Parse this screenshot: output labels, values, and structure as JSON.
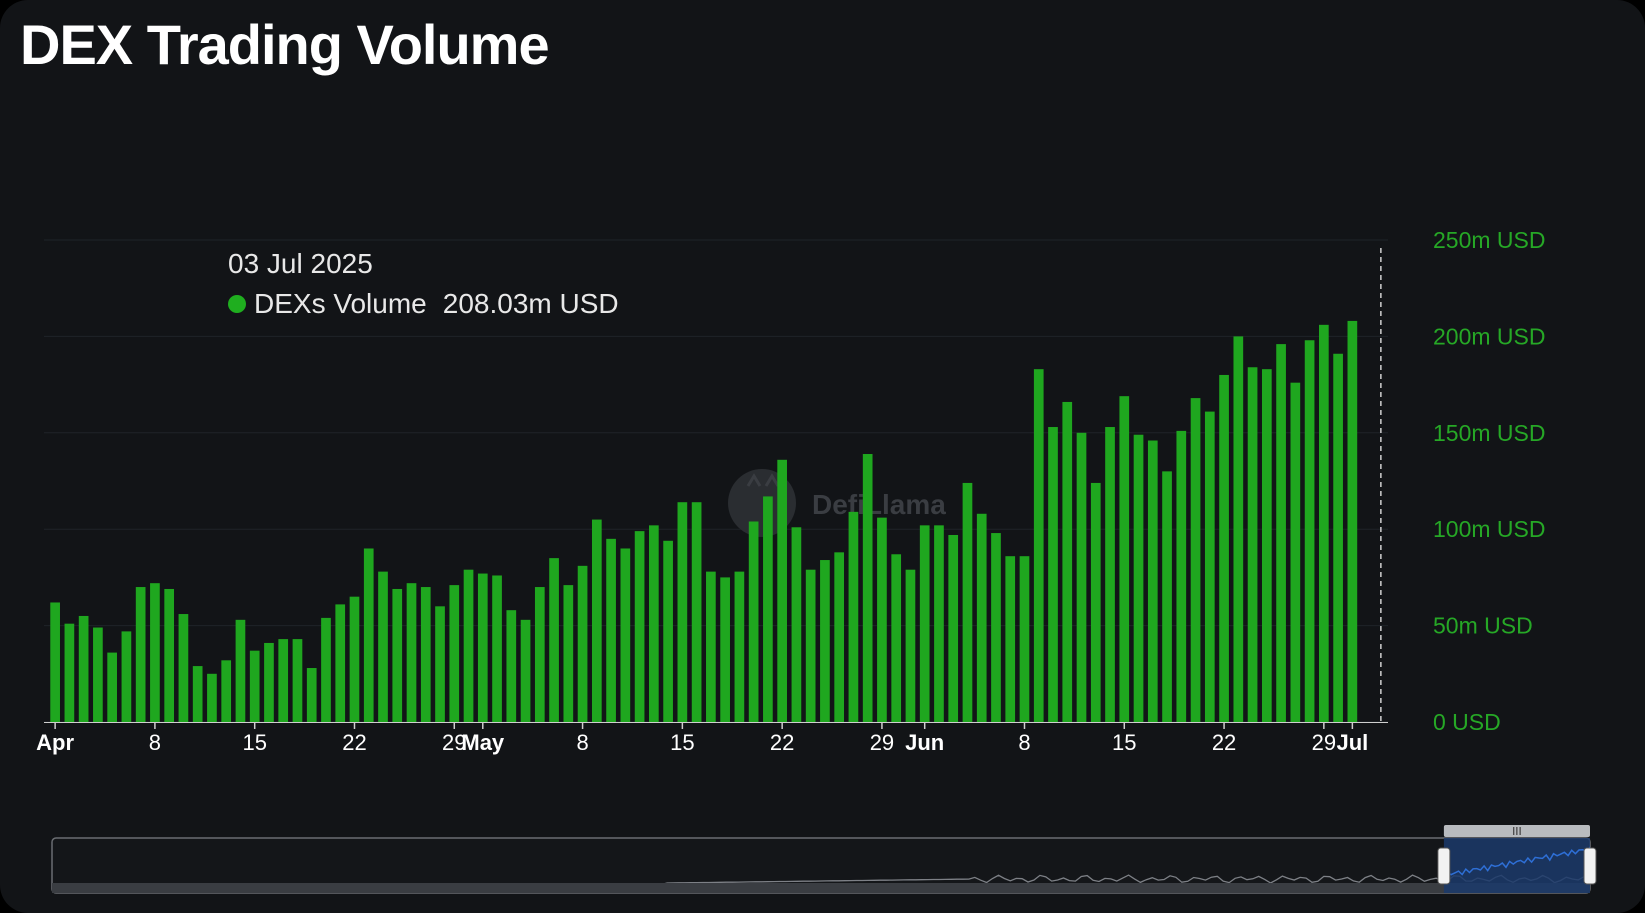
{
  "title": "DEX Trading Volume",
  "tooltip": {
    "date": "03 Jul 2025",
    "series_name": "DEXs Volume",
    "value_text": "208.03m USD"
  },
  "watermark_text": "DefiLlama",
  "colors": {
    "background": "#121417",
    "bar": "#1fa71f",
    "axis_label": "#26a826",
    "grid": "#1f2328",
    "tooltip_dot": "#1fae1f",
    "navigator_selected": "#1b3a6b"
  },
  "chart_data": {
    "type": "bar",
    "title": "DEX Trading Volume",
    "series": [
      {
        "name": "DEXs Volume",
        "values": [
          62,
          51,
          55,
          49,
          36,
          47,
          70,
          72,
          69,
          56,
          29,
          25,
          32,
          53,
          37,
          41,
          43,
          43,
          28,
          54,
          61,
          65,
          90,
          78,
          69,
          72,
          70,
          60,
          71,
          79,
          77,
          76,
          58,
          53,
          70,
          85,
          71,
          81,
          105,
          95,
          90,
          99,
          102,
          94,
          114,
          114,
          78,
          75,
          78,
          104,
          117,
          136,
          101,
          79,
          84,
          88,
          109,
          139,
          106,
          87,
          79,
          102,
          102,
          97,
          124,
          108,
          98,
          86,
          86,
          183,
          153,
          166,
          150,
          124,
          153,
          169,
          149,
          146,
          130,
          151,
          168,
          161,
          180,
          200,
          184,
          183,
          196,
          176,
          198,
          206,
          191,
          208.03
        ]
      }
    ],
    "x_start": "2025-04-01",
    "x_end": "2025-07-03",
    "x_ticks": [
      {
        "date": "2025-04-01",
        "label": "Apr",
        "bold": true
      },
      {
        "date": "2025-04-08",
        "label": "8",
        "bold": false
      },
      {
        "date": "2025-04-15",
        "label": "15",
        "bold": false
      },
      {
        "date": "2025-04-22",
        "label": "22",
        "bold": false
      },
      {
        "date": "2025-04-29",
        "label": "29",
        "bold": false
      },
      {
        "date": "2025-05-01",
        "label": "May",
        "bold": true
      },
      {
        "date": "2025-05-08",
        "label": "8",
        "bold": false
      },
      {
        "date": "2025-05-15",
        "label": "15",
        "bold": false
      },
      {
        "date": "2025-05-22",
        "label": "22",
        "bold": false
      },
      {
        "date": "2025-05-29",
        "label": "29",
        "bold": false
      },
      {
        "date": "2025-06-01",
        "label": "Jun",
        "bold": true
      },
      {
        "date": "2025-06-08",
        "label": "8",
        "bold": false
      },
      {
        "date": "2025-06-15",
        "label": "15",
        "bold": false
      },
      {
        "date": "2025-06-22",
        "label": "22",
        "bold": false
      },
      {
        "date": "2025-06-29",
        "label": "29",
        "bold": false
      },
      {
        "date": "2025-07-01",
        "label": "Jul",
        "bold": true
      }
    ],
    "y_ticks": [
      {
        "value": 0,
        "label": "0 USD"
      },
      {
        "value": 50,
        "label": "50m USD"
      },
      {
        "value": 100,
        "label": "100m USD"
      },
      {
        "value": 150,
        "label": "150m USD"
      },
      {
        "value": 200,
        "label": "200m USD"
      },
      {
        "value": 250,
        "label": "250m USD"
      }
    ],
    "ylim": [
      0,
      250
    ],
    "y_unit": "m USD",
    "grid": true,
    "highlighted_date": "2025-07-03",
    "navigator": {
      "selected_fraction": [
        0.905,
        1.0
      ]
    }
  }
}
